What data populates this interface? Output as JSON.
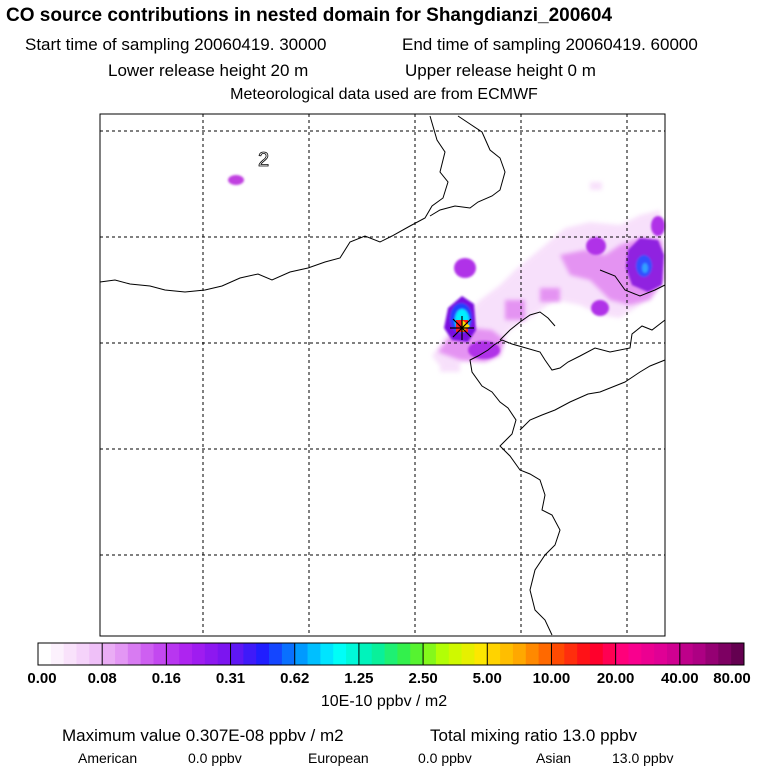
{
  "header": {
    "title": "CO  source contributions in nested domain for Shangdianzi_200604",
    "start_time": "Start time of sampling 20060419. 30000",
    "end_time": "End time of sampling 20060419. 60000",
    "lower_height": "Lower release height   20 m",
    "upper_height": "Upper release height    0 m",
    "meteo": "Meteorological data used are from ECMWF"
  },
  "chart_data": {
    "type": "heatmap",
    "map_label": "2",
    "units": "10E-10 ppbv / m2",
    "colorbar": {
      "ticks": [
        "0.00",
        "0.08",
        "0.16",
        "0.31",
        "0.62",
        "1.25",
        "2.50",
        "5.00",
        "10.00",
        "20.00",
        "40.00",
        "80.00"
      ]
    },
    "grid": true
  },
  "footer": {
    "max_value": "Maximum value  0.307E-08 ppbv / m2",
    "total_mixing": "Total mixing ratio      13.0 ppbv",
    "regions": [
      {
        "name": "American",
        "value": "0.0 ppbv"
      },
      {
        "name": "European",
        "value": "0.0 ppbv"
      },
      {
        "name": "Asian",
        "value": "13.0 ppbv"
      }
    ]
  },
  "colors": {
    "magenta_light": "#f2c8f8",
    "magenta": "#e080f0",
    "purple": "#b030e8",
    "violet": "#7a10e0",
    "blue": "#2040ff",
    "cyan": "#00ffff",
    "site_marker": "#ff2020"
  }
}
